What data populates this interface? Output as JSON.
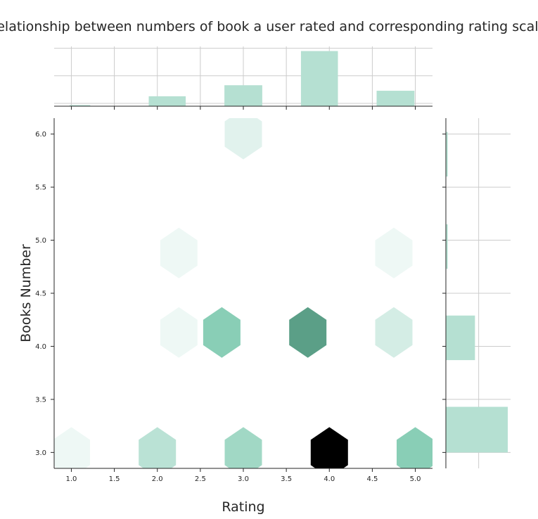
{
  "chart_data": {
    "type": "hexbin-joint",
    "title": "Relationship between numbers of book a user rated and corresponding rating scales",
    "xlabel": "Rating",
    "ylabel": "Books Number",
    "xlim": [
      0.8,
      5.2
    ],
    "ylim": [
      2.85,
      6.15
    ],
    "x_ticks": [
      "1.0",
      "1.5",
      "2.0",
      "2.5",
      "3.0",
      "3.5",
      "4.0",
      "4.5",
      "5.0"
    ],
    "y_ticks": [
      "3.0",
      "3.5",
      "4.0",
      "4.5",
      "5.0",
      "5.5",
      "6.0"
    ],
    "grid": true,
    "colormap": [
      "#ffffff",
      "#b5e0d2",
      "#6fc3a5",
      "#000000"
    ],
    "hexbins": [
      {
        "x": 1.0,
        "y": 3.0,
        "count": 1
      },
      {
        "x": 2.0,
        "y": 3.0,
        "count": 3
      },
      {
        "x": 3.0,
        "y": 3.0,
        "count": 4
      },
      {
        "x": 4.0,
        "y": 3.0,
        "count": 12
      },
      {
        "x": 5.0,
        "y": 3.0,
        "count": 5
      },
      {
        "x": 2.25,
        "y": 4.13,
        "count": 1
      },
      {
        "x": 2.75,
        "y": 4.13,
        "count": 5
      },
      {
        "x": 3.75,
        "y": 4.13,
        "count": 7
      },
      {
        "x": 4.75,
        "y": 4.13,
        "count": 2
      },
      {
        "x": 2.25,
        "y": 4.88,
        "count": 1
      },
      {
        "x": 4.75,
        "y": 4.88,
        "count": 1
      },
      {
        "x": 3.0,
        "y": 6.0,
        "count": 1.5
      }
    ],
    "max_count": 12,
    "marginal_x": {
      "color": "#b5e0d2",
      "bins": [
        {
          "from": 0.98,
          "to": 1.22,
          "height": 0.02
        },
        {
          "from": 1.9,
          "to": 2.33,
          "height": 0.18
        },
        {
          "from": 2.78,
          "to": 3.22,
          "height": 0.38
        },
        {
          "from": 3.67,
          "to": 4.1,
          "height": 1.0
        },
        {
          "from": 4.55,
          "to": 4.99,
          "height": 0.28
        }
      ],
      "grid_levels": [
        0.5
      ]
    },
    "marginal_y": {
      "color": "#b5e0d2",
      "bins": [
        {
          "from": 3.0,
          "to": 3.43,
          "width": 1.0
        },
        {
          "from": 3.87,
          "to": 4.29,
          "width": 0.47
        },
        {
          "from": 4.73,
          "to": 5.15,
          "width": 0.03
        },
        {
          "from": 5.6,
          "to": 6.02,
          "width": 0.03
        }
      ],
      "grid_levels": [
        0.53
      ]
    }
  }
}
